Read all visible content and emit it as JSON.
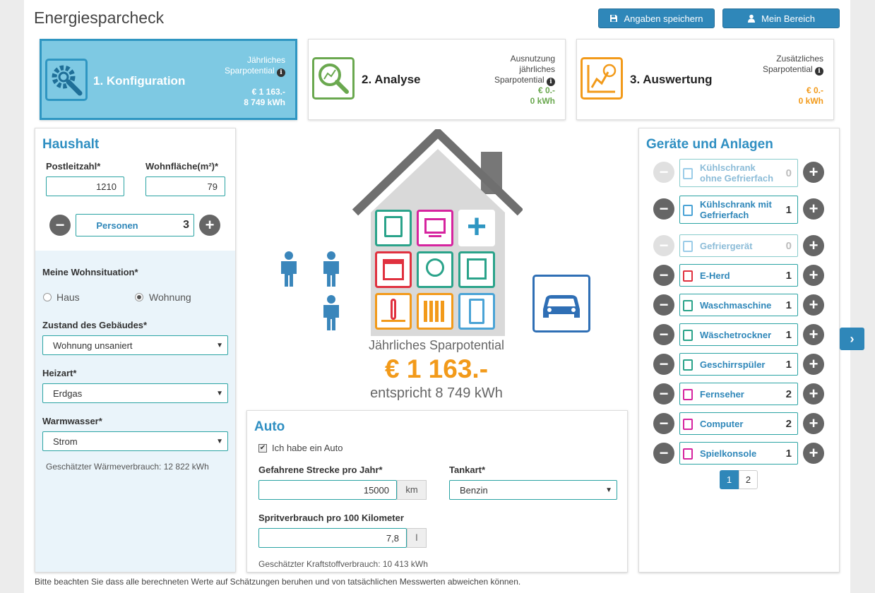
{
  "header": {
    "title": "Energiesparcheck",
    "save_label": "Angaben speichern",
    "account_label": "Mein Bereich"
  },
  "steps": [
    {
      "name": "1. Konfiguration",
      "right_label_1": "Jährliches",
      "right_label_2": "Sparpotential",
      "euro": "€ 1 163.-",
      "kwh": "8 749 kWh"
    },
    {
      "name": "2. Analyse",
      "right_label_1": "Ausnutzung",
      "right_label_2": "jährliches",
      "right_label_3": "Sparpotential",
      "euro": "€ 0.-",
      "kwh": "0 kWh"
    },
    {
      "name": "3. Auswertung",
      "right_label_1": "Zusätzliches",
      "right_label_2": "Sparpotential",
      "euro": "€ 0.-",
      "kwh": "0 kWh"
    }
  ],
  "haushalt": {
    "title": "Haushalt",
    "postleitzahl_label": "Postleitzahl*",
    "postleitzahl": "1210",
    "wohnflaeche_label": "Wohnfläche(m²)*",
    "wohnflaeche": "79",
    "personen_label": "Personen",
    "personen": "3",
    "wohnsituation_label": "Meine Wohnsituation*",
    "opt_haus": "Haus",
    "opt_wohnung": "Wohnung",
    "selected": "Wohnung",
    "zustand_label": "Zustand des Gebäudes*",
    "zustand": "Wohnung unsaniert",
    "heizart_label": "Heizart*",
    "heizart": "Erdgas",
    "warmwasser_label": "Warmwasser*",
    "warmwasser": "Strom",
    "waerme_note": "Geschätzter Wärmeverbrauch: 12 822 kWh"
  },
  "center": {
    "label": "Jährliches Sparpotential",
    "euro": "€ 1 163.-",
    "kwh": "entspricht 8 749 kWh"
  },
  "auto": {
    "title": "Auto",
    "checkbox_label": "Ich habe ein Auto",
    "checked": true,
    "strecke_label": "Gefahrene Strecke pro Jahr*",
    "strecke": "15000",
    "strecke_unit": "km",
    "tankart_label": "Tankart*",
    "tankart": "Benzin",
    "sprit_label": "Spritverbrauch pro 100 Kilometer",
    "sprit": "7,8",
    "sprit_unit": "l",
    "note": "Geschätzter Kraftstoffverbrauch: 10 413 kWh"
  },
  "geraete": {
    "title": "Geräte und Anlagen",
    "items": [
      {
        "name_1": "Kühlschrank",
        "name_2": "ohne Gefrierfach",
        "count": "0",
        "color": "#4aa3d6"
      },
      {
        "name_1": "Kühlschrank mit",
        "name_2": "Gefrierfach",
        "count": "1",
        "color": "#4aa3d6"
      },
      {
        "name_1": "Gefriergerät",
        "name_2": "",
        "count": "0",
        "color": "#4aa3d6"
      },
      {
        "name_1": "E-Herd",
        "name_2": "",
        "count": "1",
        "color": "#e0313f"
      },
      {
        "name_1": "Waschmaschine",
        "name_2": "",
        "count": "1",
        "color": "#2aa38a"
      },
      {
        "name_1": "Wäschetrockner",
        "name_2": "",
        "count": "1",
        "color": "#2aa38a"
      },
      {
        "name_1": "Geschirrspüler",
        "name_2": "",
        "count": "1",
        "color": "#2aa38a"
      },
      {
        "name_1": "Fernseher",
        "name_2": "",
        "count": "2",
        "color": "#d6249f"
      },
      {
        "name_1": "Computer",
        "name_2": "",
        "count": "2",
        "color": "#d6249f"
      },
      {
        "name_1": "Spielkonsole",
        "name_2": "",
        "count": "1",
        "color": "#d6249f"
      }
    ],
    "page_1": "1",
    "page_2": "2"
  },
  "footer_note": "Bitte beachten Sie dass alle berechneten Werte auf Schätzungen beruhen und von tatsächlichen Messwerten abweichen können.",
  "colors": {
    "primary": "#2f87b9",
    "teal": "#2aa3a3",
    "orange": "#f29a1a",
    "green": "#6aa84f",
    "active_step": "#7ec9e3"
  }
}
